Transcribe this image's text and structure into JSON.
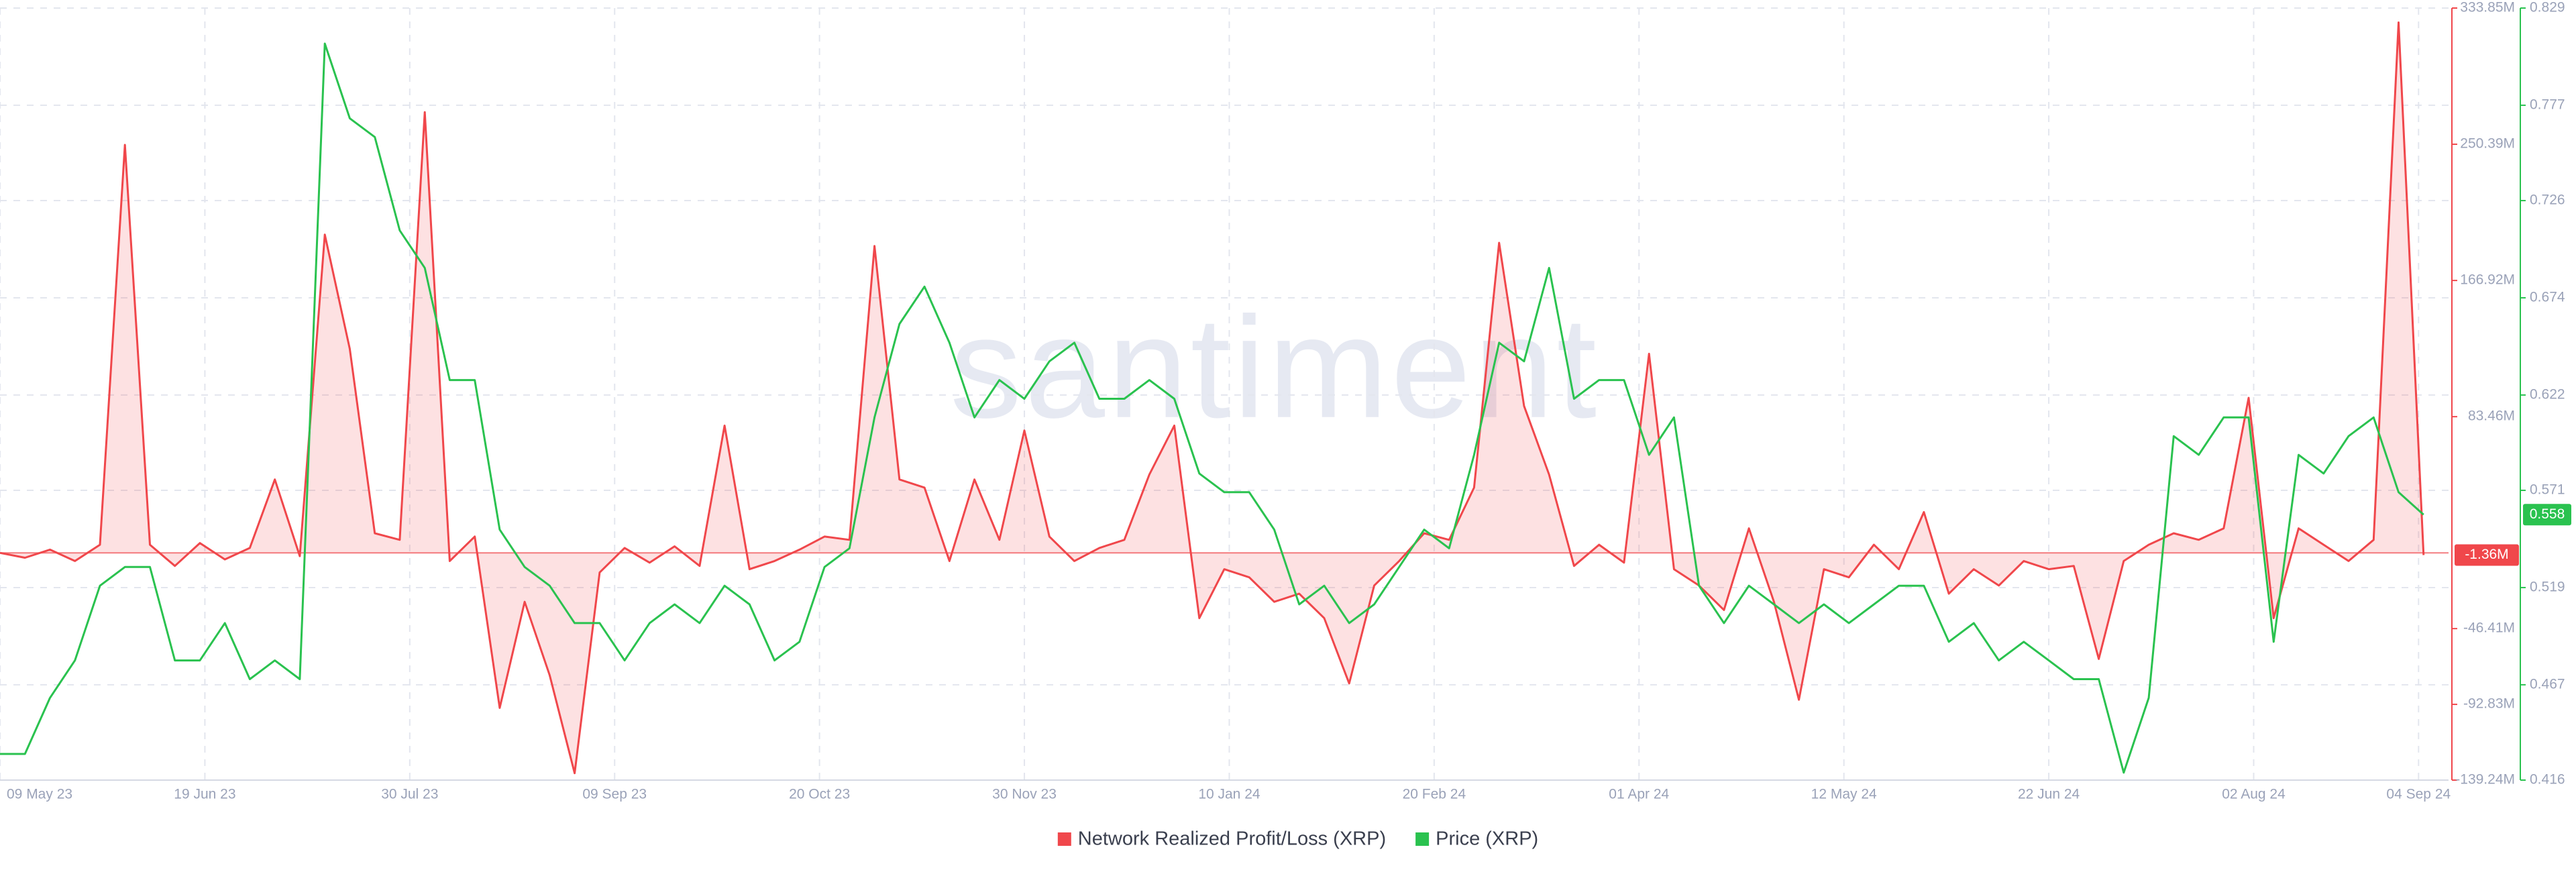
{
  "chart_data": {
    "type": "line",
    "watermark": "santiment",
    "x": [
      "2023-05-09",
      "2023-05-14",
      "2023-05-19",
      "2023-05-24",
      "2023-05-29",
      "2023-06-03",
      "2023-06-08",
      "2023-06-13",
      "2023-06-18",
      "2023-06-23",
      "2023-06-28",
      "2023-07-03",
      "2023-07-08",
      "2023-07-13",
      "2023-07-18",
      "2023-07-23",
      "2023-07-28",
      "2023-08-02",
      "2023-08-07",
      "2023-08-12",
      "2023-08-17",
      "2023-08-22",
      "2023-08-27",
      "2023-09-01",
      "2023-09-06",
      "2023-09-11",
      "2023-09-16",
      "2023-09-21",
      "2023-09-26",
      "2023-10-01",
      "2023-10-06",
      "2023-10-11",
      "2023-10-16",
      "2023-10-21",
      "2023-10-26",
      "2023-10-31",
      "2023-11-05",
      "2023-11-10",
      "2023-11-15",
      "2023-11-20",
      "2023-11-25",
      "2023-11-30",
      "2023-12-05",
      "2023-12-10",
      "2023-12-15",
      "2023-12-20",
      "2023-12-25",
      "2023-12-30",
      "2024-01-04",
      "2024-01-09",
      "2024-01-14",
      "2024-01-19",
      "2024-01-24",
      "2024-01-29",
      "2024-02-03",
      "2024-02-08",
      "2024-02-13",
      "2024-02-18",
      "2024-02-23",
      "2024-02-28",
      "2024-03-04",
      "2024-03-09",
      "2024-03-14",
      "2024-03-19",
      "2024-03-24",
      "2024-03-29",
      "2024-04-03",
      "2024-04-08",
      "2024-04-13",
      "2024-04-18",
      "2024-04-23",
      "2024-04-28",
      "2024-05-03",
      "2024-05-08",
      "2024-05-13",
      "2024-05-18",
      "2024-05-23",
      "2024-05-28",
      "2024-06-02",
      "2024-06-07",
      "2024-06-12",
      "2024-06-17",
      "2024-06-22",
      "2024-06-27",
      "2024-07-02",
      "2024-07-07",
      "2024-07-12",
      "2024-07-17",
      "2024-07-22",
      "2024-07-27",
      "2024-08-01",
      "2024-08-06",
      "2024-08-11",
      "2024-08-16",
      "2024-08-21",
      "2024-08-26",
      "2024-08-31",
      "2024-09-05"
    ],
    "xlim": [
      "2023-05-09",
      "2024-09-10"
    ],
    "xticks": [
      {
        "value": "2023-05-09",
        "label": "09 May 23"
      },
      {
        "value": "2023-06-19",
        "label": "19 Jun 23"
      },
      {
        "value": "2023-07-30",
        "label": "30 Jul 23"
      },
      {
        "value": "2023-09-09",
        "label": "09 Sep 23"
      },
      {
        "value": "2023-10-20",
        "label": "20 Oct 23"
      },
      {
        "value": "2023-11-30",
        "label": "30 Nov 23"
      },
      {
        "value": "2024-01-10",
        "label": "10 Jan 24"
      },
      {
        "value": "2024-02-20",
        "label": "20 Feb 24"
      },
      {
        "value": "2024-04-01",
        "label": "01 Apr 24"
      },
      {
        "value": "2024-05-12",
        "label": "12 May 24"
      },
      {
        "value": "2024-06-22",
        "label": "22 Jun 24"
      },
      {
        "value": "2024-08-02",
        "label": "02 Aug 24"
      },
      {
        "value": "2024-09-04",
        "label": "04 Sep 24"
      }
    ],
    "ylim": [
      -139.24,
      333.85
    ],
    "yticks": [
      {
        "value": 333.85,
        "label": "333.85M"
      },
      {
        "value": 250.39,
        "label": "250.39M"
      },
      {
        "value": 166.92,
        "label": "166.92M"
      },
      {
        "value": 83.46,
        "label": "83.46M"
      },
      {
        "value": -46.41,
        "label": "-46.41M"
      },
      {
        "value": -92.83,
        "label": "-92.83M"
      },
      {
        "value": -139.24,
        "label": "-139.24M"
      }
    ],
    "y2lim": [
      0.416,
      0.829
    ],
    "y2ticks": [
      0.829,
      0.777,
      0.726,
      0.674,
      0.622,
      0.571,
      0.519,
      0.467,
      0.416
    ],
    "grid": true,
    "legend": "bottom",
    "series": [
      {
        "name": "Network Realized Profit/Loss (XRP)",
        "color": "#f0474b",
        "area": true,
        "last_value_label": "-1.36M",
        "values": [
          0,
          -3,
          2,
          -5,
          5,
          250,
          5,
          -8,
          6,
          -4,
          3,
          45,
          -2,
          195,
          125,
          12,
          8,
          270,
          -5,
          10,
          -95,
          -30,
          -75,
          -135,
          -12,
          3,
          -6,
          4,
          -8,
          78,
          -10,
          -5,
          2,
          10,
          8,
          188,
          45,
          40,
          -5,
          45,
          8,
          75,
          10,
          -5,
          3,
          8,
          48,
          78,
          -40,
          -10,
          -15,
          -30,
          -25,
          -40,
          -80,
          -20,
          -5,
          12,
          8,
          40,
          190,
          90,
          48,
          -8,
          5,
          -6,
          122,
          -10,
          -20,
          -35,
          15,
          -30,
          -90,
          -10,
          -15,
          5,
          -10,
          25,
          -25,
          -10,
          -20,
          -5,
          -10,
          -8,
          -65,
          -5,
          5,
          12,
          8,
          15,
          95,
          -40,
          15,
          5,
          -5,
          8,
          325,
          -1.36
        ]
      },
      {
        "name": "Price (XRP)",
        "color": "#2ac24f",
        "axis": "y2",
        "values": [
          0.43,
          0.43,
          0.46,
          0.48,
          0.52,
          0.53,
          0.53,
          0.48,
          0.48,
          0.5,
          0.47,
          0.48,
          0.47,
          0.81,
          0.77,
          0.76,
          0.71,
          0.69,
          0.63,
          0.63,
          0.55,
          0.53,
          0.52,
          0.5,
          0.5,
          0.48,
          0.5,
          0.51,
          0.5,
          0.52,
          0.51,
          0.48,
          0.49,
          0.53,
          0.54,
          0.61,
          0.66,
          0.68,
          0.65,
          0.61,
          0.63,
          0.62,
          0.64,
          0.65,
          0.62,
          0.62,
          0.63,
          0.62,
          0.58,
          0.57,
          0.57,
          0.55,
          0.51,
          0.52,
          0.5,
          0.51,
          0.53,
          0.55,
          0.54,
          0.59,
          0.65,
          0.64,
          0.69,
          0.62,
          0.63,
          0.63,
          0.59,
          0.61,
          0.52,
          0.5,
          0.52,
          0.51,
          0.5,
          0.51,
          0.5,
          0.51,
          0.52,
          0.52,
          0.49,
          0.5,
          0.48,
          0.49,
          0.48,
          0.47,
          0.47,
          0.42,
          0.46,
          0.6,
          0.59,
          0.61,
          0.61,
          0.49,
          0.59,
          0.58,
          0.6,
          0.61,
          0.57,
          0.558
        ]
      }
    ]
  }
}
